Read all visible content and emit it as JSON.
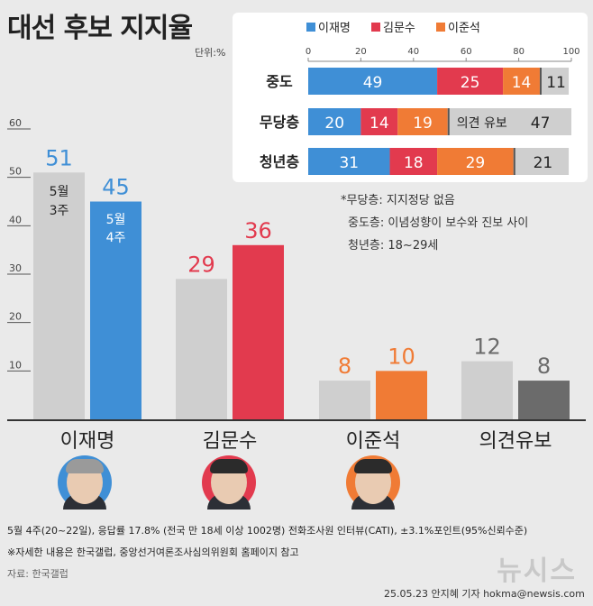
{
  "title": "대선 후보 지지율",
  "unit": "단위:%",
  "chart_data": [
    {
      "type": "bar",
      "categories": [
        "이재명",
        "김문수",
        "이준석",
        "의견유보"
      ],
      "series": [
        {
          "name": "5월 3주",
          "values": [
            51,
            29,
            8,
            12
          ]
        },
        {
          "name": "5월 4주",
          "values": [
            45,
            36,
            10,
            8
          ]
        }
      ],
      "series_labels": [
        [
          "5월",
          "3주"
        ],
        [
          "5월",
          "4주"
        ]
      ],
      "yticks": [
        10,
        20,
        30,
        40,
        50,
        60
      ],
      "ylim": [
        0,
        60
      ],
      "colors": {
        "prev": "#cfcfcf",
        "cur": [
          "#3f8fd6",
          "#e23a4e",
          "#f07b35",
          "#6b6b6b"
        ],
        "value_text": [
          "#3f8fd6",
          "#e23a4e",
          "#f07b35",
          "#6b6b6b"
        ]
      }
    },
    {
      "type": "bar",
      "orientation": "horizontal-stacked",
      "legend": [
        {
          "name": "이재명",
          "color": "#3f8fd6"
        },
        {
          "name": "김문수",
          "color": "#e23a4e"
        },
        {
          "name": "이준석",
          "color": "#f07b35"
        }
      ],
      "xticks": [
        0,
        20,
        40,
        60,
        80,
        100
      ],
      "rows": [
        {
          "label": "중도",
          "values": [
            49,
            25,
            14,
            11
          ],
          "remainder_label": ""
        },
        {
          "label": "무당층",
          "values": [
            20,
            14,
            19,
            47
          ],
          "remainder_label": "의견 유보"
        },
        {
          "label": "청년층",
          "values": [
            31,
            18,
            29,
            21
          ],
          "remainder_label": ""
        }
      ],
      "remainder_color": "#cfcfcf"
    }
  ],
  "notes": [
    "*무당층: 지지정당 없음",
    "중도층: 이념성향이 보수와 진보 사이",
    "청년층: 18~29세"
  ],
  "footer": {
    "line1": "5월 4주(20~22일), 응답률 17.8% (전국 만 18세 이상 1002명) 전화조사원 인터뷰(CATI), ±3.1%포인트(95%신뢰수준)",
    "line2": "※자세한 내용은 한국갤럽, 중앙선거여론조사심의위원회 홈페이지 참고",
    "source": "자료: 한국갤럽",
    "logo": "뉴시스",
    "credit": "25.05.23 안지혜 기자 hokma@newsis.com"
  }
}
